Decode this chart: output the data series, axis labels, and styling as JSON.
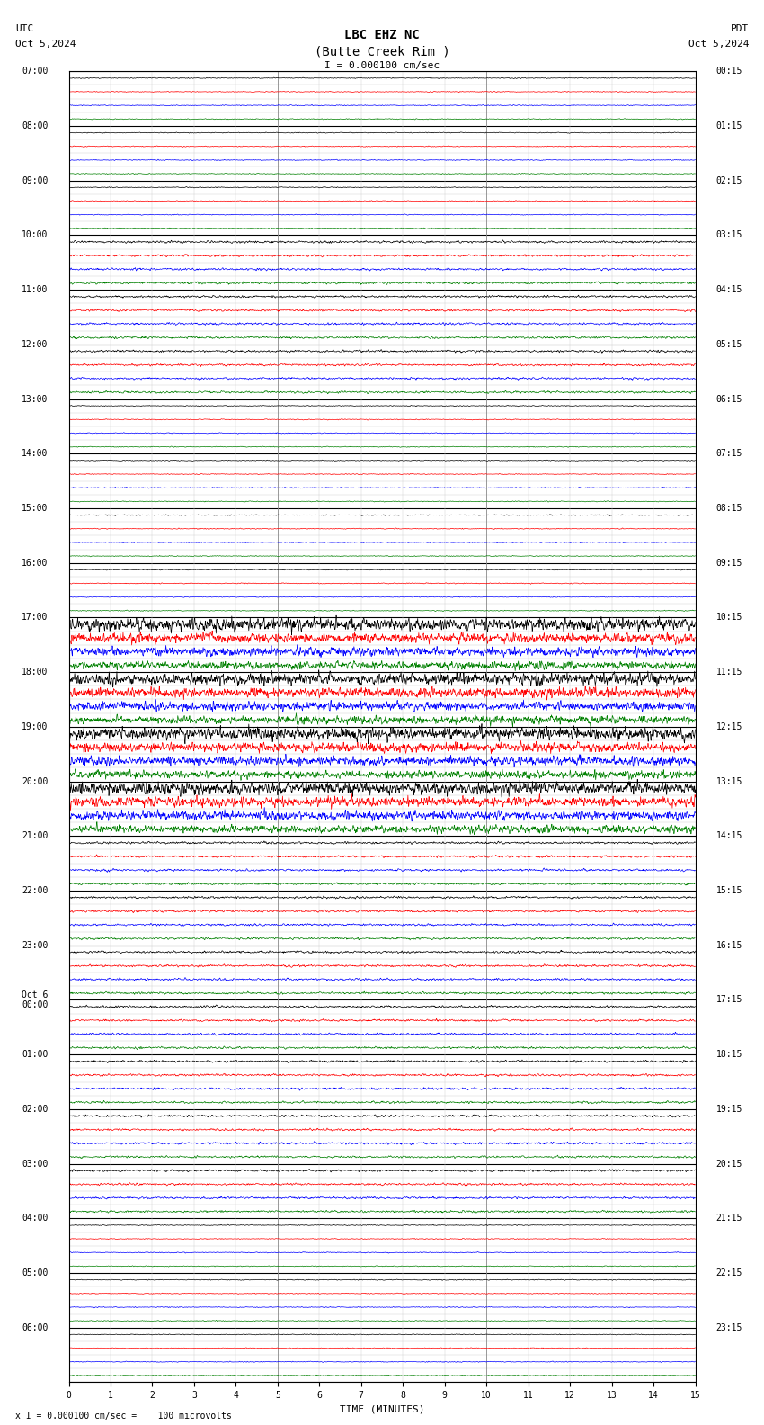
{
  "title_line1": "LBC EHZ NC",
  "title_line2": "(Butte Creek Rim )",
  "scale_label": "I = 0.000100 cm/sec",
  "utc_label": "UTC",
  "utc_date": "Oct 5,2024",
  "pdt_label": "PDT",
  "pdt_date": "Oct 5,2024",
  "footer_label": "x I = 0.000100 cm/sec =    100 microvolts",
  "xlabel": "TIME (MINUTES)",
  "left_times": [
    "07:00",
    "",
    "",
    "",
    "08:00",
    "",
    "",
    "",
    "09:00",
    "",
    "",
    "",
    "10:00",
    "",
    "",
    "",
    "11:00",
    "",
    "",
    "",
    "12:00",
    "",
    "",
    "",
    "13:00",
    "",
    "",
    "",
    "14:00",
    "",
    "",
    "",
    "15:00",
    "",
    "",
    "",
    "16:00",
    "",
    "",
    "",
    "17:00",
    "",
    "",
    "",
    "18:00",
    "",
    "",
    "",
    "19:00",
    "",
    "",
    "",
    "20:00",
    "",
    "",
    "",
    "21:00",
    "",
    "",
    "",
    "22:00",
    "",
    "",
    "",
    "23:00",
    "",
    "",
    "",
    "Oct 6\n00:00",
    "",
    "",
    "",
    "01:00",
    "",
    "",
    "",
    "02:00",
    "",
    "",
    "",
    "03:00",
    "",
    "",
    "",
    "04:00",
    "",
    "",
    "",
    "05:00",
    "",
    "",
    "",
    "06:00",
    "",
    "",
    ""
  ],
  "right_times": [
    "00:15",
    "",
    "",
    "",
    "01:15",
    "",
    "",
    "",
    "02:15",
    "",
    "",
    "",
    "03:15",
    "",
    "",
    "",
    "04:15",
    "",
    "",
    "",
    "05:15",
    "",
    "",
    "",
    "06:15",
    "",
    "",
    "",
    "07:15",
    "",
    "",
    "",
    "08:15",
    "",
    "",
    "",
    "09:15",
    "",
    "",
    "",
    "10:15",
    "",
    "",
    "",
    "11:15",
    "",
    "",
    "",
    "12:15",
    "",
    "",
    "",
    "13:15",
    "",
    "",
    "",
    "14:15",
    "",
    "",
    "",
    "15:15",
    "",
    "",
    "",
    "16:15",
    "",
    "",
    "",
    "17:15",
    "",
    "",
    "",
    "18:15",
    "",
    "",
    "",
    "19:15",
    "",
    "",
    "",
    "20:15",
    "",
    "",
    "",
    "21:15",
    "",
    "",
    "",
    "22:15",
    "",
    "",
    "",
    "23:15",
    "",
    "",
    ""
  ],
  "n_segs": 24,
  "n_cols": 15,
  "bg_color": "#ffffff",
  "grid_color": "#bbbbbb",
  "trace_colors": [
    "#000000",
    "#ff0000",
    "#0000ff",
    "#008000"
  ],
  "title_fontsize": 10,
  "label_fontsize": 8,
  "tick_fontsize": 7
}
